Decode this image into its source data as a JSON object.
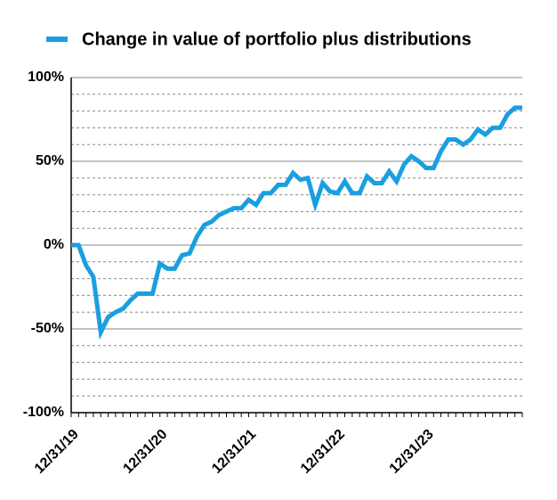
{
  "chart_data": {
    "type": "line",
    "categories": [
      "12/31/19",
      null,
      null,
      null,
      null,
      null,
      null,
      null,
      null,
      null,
      null,
      null,
      "12/31/20",
      null,
      null,
      null,
      null,
      null,
      null,
      null,
      null,
      null,
      null,
      null,
      "12/31/21",
      null,
      null,
      null,
      null,
      null,
      null,
      null,
      null,
      null,
      null,
      null,
      "12/31/22",
      null,
      null,
      null,
      null,
      null,
      null,
      null,
      null,
      null,
      null,
      null,
      "12/31/23",
      null,
      null,
      null,
      null,
      null,
      null,
      null,
      null,
      null,
      null,
      null,
      null,
      null
    ],
    "series": [
      {
        "name": "Change in value of portfolio plus distributions",
        "color": "#1a9fe0",
        "values": [
          0,
          0,
          -12,
          -19,
          -52,
          -43,
          -40,
          -38,
          -33,
          -29,
          -29,
          -29,
          -11,
          -14,
          -14,
          -6,
          -5,
          5,
          12,
          14,
          18,
          20,
          22,
          22,
          27,
          24,
          31,
          31,
          36,
          36,
          43,
          39,
          40,
          24,
          37,
          32,
          31,
          38,
          31,
          31,
          41,
          37,
          37,
          44,
          38,
          48,
          53,
          50,
          46,
          46,
          56,
          63,
          63,
          60,
          63,
          69,
          66,
          70,
          70,
          78,
          82,
          82
        ]
      }
    ],
    "ylim": [
      -100,
      100
    ],
    "yticks": [
      {
        "value": -100,
        "label": "-100%"
      },
      {
        "value": -50,
        "label": "-50%"
      },
      {
        "value": 0,
        "label": "0%"
      },
      {
        "value": 50,
        "label": "50%"
      },
      {
        "value": 100,
        "label": "100%"
      }
    ],
    "grid": true,
    "legend": "top"
  }
}
